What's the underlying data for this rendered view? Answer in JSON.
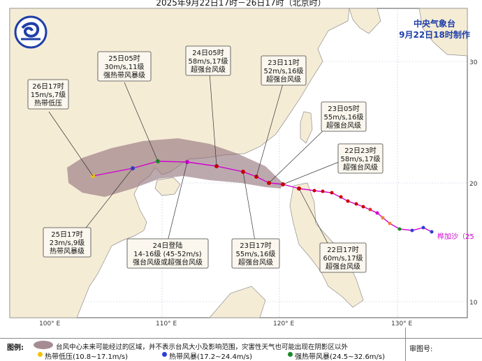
{
  "title": "2025年9月22日17时－26日17时（北京时）",
  "agency": "中央气象台",
  "made_time": "9月22日18时制作",
  "typhoon_name": "桦加沙（25",
  "axis": {
    "lon_ticks": [
      "100° E",
      "110° E",
      "120° E",
      "130° E"
    ],
    "lat_ticks": [
      "30",
      "20",
      "10"
    ]
  },
  "forecast_labels": [
    {
      "id": "f26-17",
      "lines": [
        "26日17时",
        "15m/s,7级",
        "热带低压"
      ]
    },
    {
      "id": "f25-05",
      "lines": [
        "25日05时",
        "30m/s,11级",
        "强热带风暴级"
      ]
    },
    {
      "id": "f24-05",
      "lines": [
        "24日05时",
        "58m/s,17级",
        "超强台风级"
      ]
    },
    {
      "id": "f23-11",
      "lines": [
        "23日11时",
        "52m/s,16级",
        "超强台风级"
      ]
    },
    {
      "id": "f23-05",
      "lines": [
        "23日05时",
        "55m/s,16级",
        "超强台风级"
      ]
    },
    {
      "id": "f22-23",
      "lines": [
        "22日23时",
        "58m/s,17级",
        "超强台风级"
      ]
    },
    {
      "id": "f25-17",
      "lines": [
        "25日17时",
        "23m/s,9级",
        "热带风暴级"
      ]
    },
    {
      "id": "f24-landfall",
      "lines": [
        "24日登陆",
        "14-16级 (45-52m/s)",
        "强台风级或超强台风级"
      ]
    },
    {
      "id": "f23-17",
      "lines": [
        "23日17时",
        "55m/s,16级",
        "超强台风级"
      ]
    },
    {
      "id": "f22-17",
      "lines": [
        "22日17时",
        "60m/s,17级",
        "超强台风级"
      ]
    }
  ],
  "legend": {
    "label": "图例:",
    "cone_text": "台风中心未来可能经过的区域，并不表示台风大小及影响范围，灾害性天气也可能出现在阴影区以外",
    "items": [
      {
        "text": "热带低压(10.8~17.1m/s)",
        "color": "#f2c300"
      },
      {
        "text": "热带风暴(17.2~24.4m/s)",
        "color": "#2b3fd6"
      },
      {
        "text": "强热带风暴(24.5~32.6m/s)",
        "color": "#1a8a2a"
      }
    ],
    "review": "审图号:"
  },
  "colors": {
    "sea": "#ffffff",
    "land": "#f5ecd6",
    "cone": "#8f6f78",
    "track": "#d100d1",
    "strong": "#cc0000"
  }
}
